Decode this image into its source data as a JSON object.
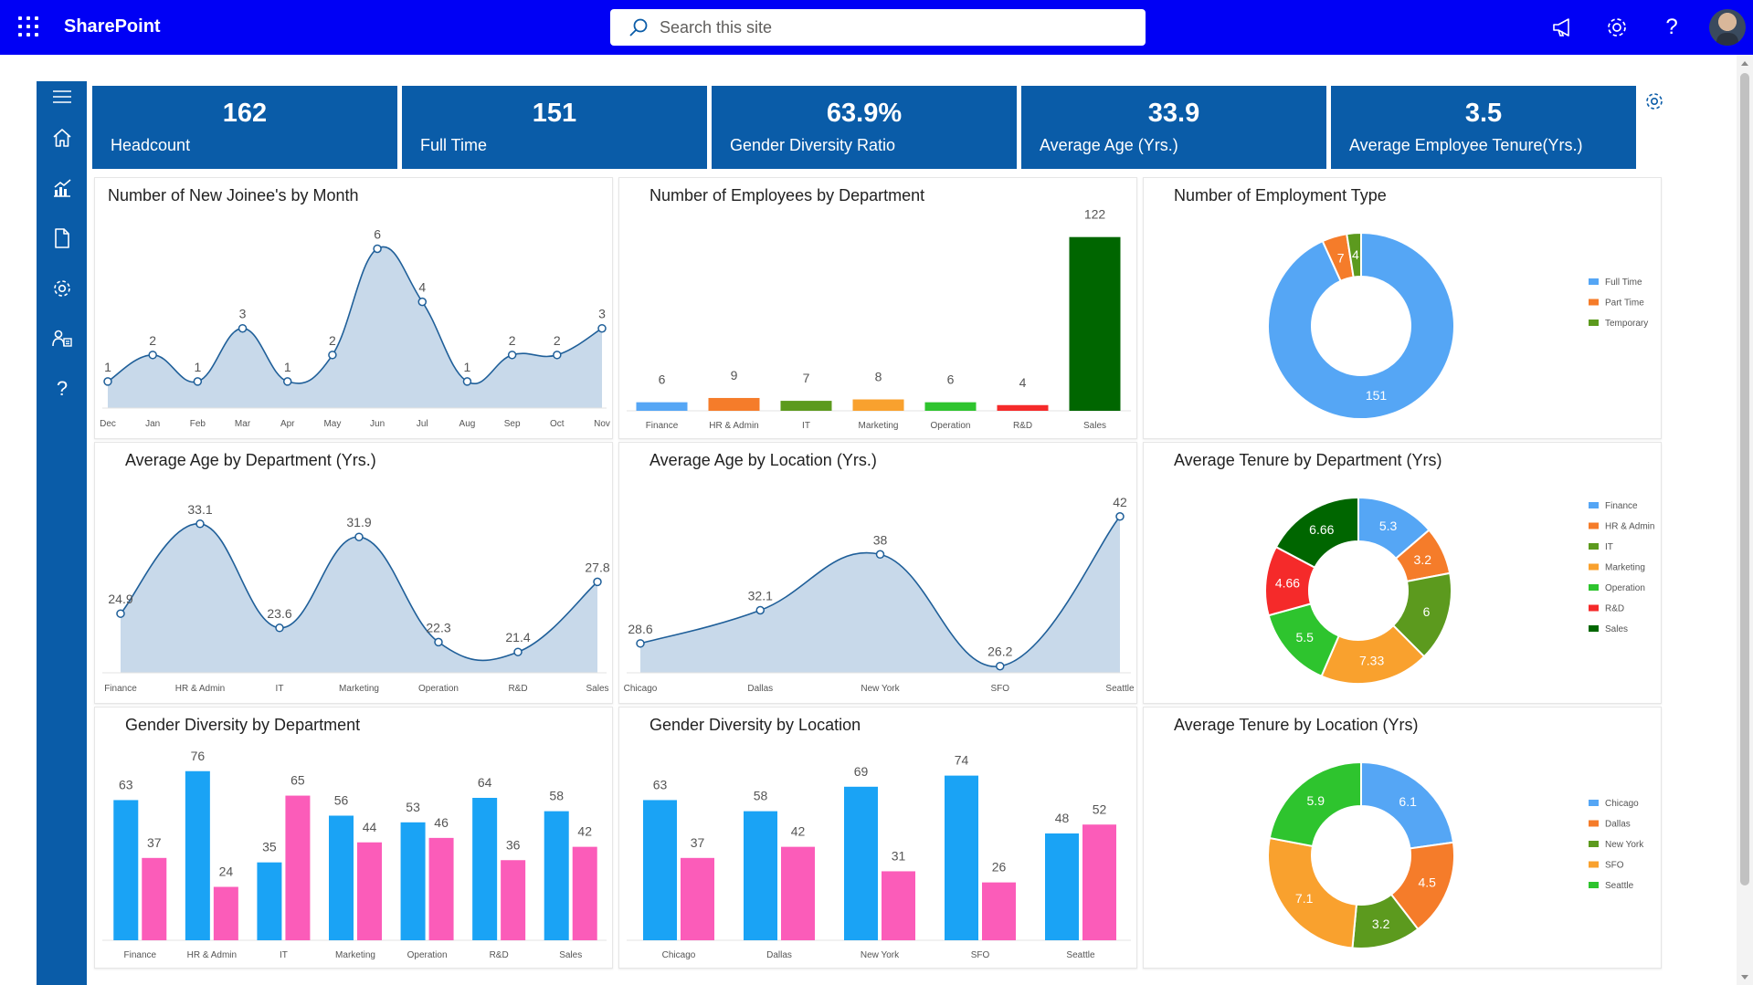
{
  "header": {
    "brand": "SharePoint",
    "search_placeholder": "Search this site"
  },
  "icons": {
    "app_launcher": "waffle-icon",
    "megaphone": "megaphone-icon",
    "settings": "gear-icon",
    "help": "help-icon",
    "profile": "avatar"
  },
  "rail_icons": [
    "hamburger-icon",
    "home-icon",
    "chart-icon",
    "document-icon",
    "gear-icon",
    "people-icon",
    "help-icon"
  ],
  "rail_help_glyph": "?",
  "topbar_help_glyph": "?",
  "colors": {
    "topbar": "#0000f5",
    "rail": "#0a5ca8",
    "kpi": "#0a5ca8"
  },
  "kpis": [
    {
      "value": "162",
      "label": "Headcount"
    },
    {
      "value": "151",
      "label": "Full Time"
    },
    {
      "value": "63.9%",
      "label": "Gender Diversity Ratio"
    },
    {
      "value": "33.9",
      "label": "Average Age (Yrs.)"
    },
    {
      "value": "3.5",
      "label": "Average Employee Tenure(Yrs.)"
    }
  ],
  "panels": [
    {
      "title": "Number of New Joinee's by Month"
    },
    {
      "title": "Number of Employees by Department"
    },
    {
      "title": "Number of Employment Type"
    },
    {
      "title": "Average Age by Department (Yrs.)"
    },
    {
      "title": "Average Age by Location (Yrs.)"
    },
    {
      "title": "Average Tenure by Department (Yrs)"
    },
    {
      "title": "Gender Diversity by Department"
    },
    {
      "title": "Gender Diversity by Location"
    },
    {
      "title": "Average Tenure by Location (Yrs)"
    }
  ],
  "chart_data": [
    {
      "type": "area",
      "title": "Number of New Joinee's by Month",
      "categories": [
        "Dec",
        "Jan",
        "Feb",
        "Mar",
        "Apr",
        "May",
        "Jun",
        "Jul",
        "Aug",
        "Sep",
        "Oct",
        "Nov"
      ],
      "values": [
        1,
        2,
        1,
        3,
        1,
        2,
        6,
        4,
        1,
        2,
        2,
        3
      ],
      "ylim": [
        0,
        6.6
      ],
      "color": "#1f5f99",
      "fill": "#c8d9ea"
    },
    {
      "type": "bar",
      "title": "Number of Employees by Department",
      "categories": [
        "Finance",
        "HR & Admin",
        "IT",
        "Marketing",
        "Operation",
        "R&D",
        "Sales"
      ],
      "values": [
        6,
        9,
        7,
        8,
        6,
        4,
        122
      ],
      "colors": [
        "#55a6f5",
        "#f57c2a",
        "#5c9a1e",
        "#f9a12e",
        "#2ec42e",
        "#f52a2a",
        "#006600"
      ],
      "ylim": [
        0,
        125
      ]
    },
    {
      "type": "pie",
      "title": "Number of Employment Type",
      "labels": [
        "Full Time",
        "Part Time",
        "Temporary"
      ],
      "values": [
        151,
        7,
        4
      ],
      "colors": [
        "#55a6f5",
        "#f57c2a",
        "#5c9a1e"
      ],
      "legend": "right"
    },
    {
      "type": "area",
      "title": "Average Age by Department (Yrs.)",
      "categories": [
        "Finance",
        "HR & Admin",
        "IT",
        "Marketing",
        "Operation",
        "R&D",
        "Sales"
      ],
      "values": [
        24.9,
        33.1,
        23.6,
        31.9,
        22.3,
        21.4,
        27.8
      ],
      "ylim": [
        19.5,
        35.5
      ],
      "color": "#1f5f99",
      "fill": "#c8d9ea"
    },
    {
      "type": "area",
      "title": "Average Age by Location (Yrs.)",
      "categories": [
        "Chicago",
        "Dallas",
        "New York",
        "SFO",
        "Seattle"
      ],
      "values": [
        28.6,
        32.1,
        38,
        26.2,
        42
      ],
      "ylim": [
        25.5,
        44
      ],
      "color": "#1f5f99",
      "fill": "#c8d9ea"
    },
    {
      "type": "pie",
      "title": "Average Tenure by Department (Yrs)",
      "labels": [
        "Finance",
        "HR & Admin",
        "IT",
        "Marketing",
        "Operation",
        "R&D",
        "Sales"
      ],
      "values": [
        5.3,
        3.2,
        6,
        7.33,
        5.5,
        4.66,
        6.66
      ],
      "colors": [
        "#55a6f5",
        "#f57c2a",
        "#5c9a1e",
        "#f9a12e",
        "#2ec42e",
        "#f52a2a",
        "#006600"
      ],
      "legend": "right"
    },
    {
      "type": "bar",
      "title": "Gender Diversity by Department",
      "categories": [
        "Finance",
        "HR & Admin",
        "IT",
        "Marketing",
        "Operation",
        "R&D",
        "Sales"
      ],
      "series": [
        {
          "values": [
            63,
            76,
            35,
            56,
            53,
            64,
            58
          ],
          "color": "#1aa3f5"
        },
        {
          "values": [
            37,
            24,
            65,
            44,
            46,
            36,
            42
          ],
          "color": "#fb5cb9"
        }
      ],
      "ylim": [
        0,
        80
      ]
    },
    {
      "type": "bar",
      "title": "Gender Diversity by Location",
      "categories": [
        "Chicago",
        "Dallas",
        "New York",
        "SFO",
        "Seattle"
      ],
      "series": [
        {
          "values": [
            63,
            58,
            69,
            74,
            48
          ],
          "color": "#1aa3f5"
        },
        {
          "values": [
            37,
            42,
            31,
            26,
            52
          ],
          "color": "#fb5cb9"
        }
      ],
      "ylim": [
        0,
        80
      ]
    },
    {
      "type": "pie",
      "title": "Average Tenure by Location (Yrs)",
      "labels": [
        "Chicago",
        "Dallas",
        "New York",
        "SFO",
        "Seattle"
      ],
      "values": [
        6.1,
        4.5,
        3.2,
        7.1,
        5.9
      ],
      "colors": [
        "#55a6f5",
        "#f57c2a",
        "#5c9a1e",
        "#f9a12e",
        "#2ec42e"
      ],
      "legend": "right"
    }
  ]
}
